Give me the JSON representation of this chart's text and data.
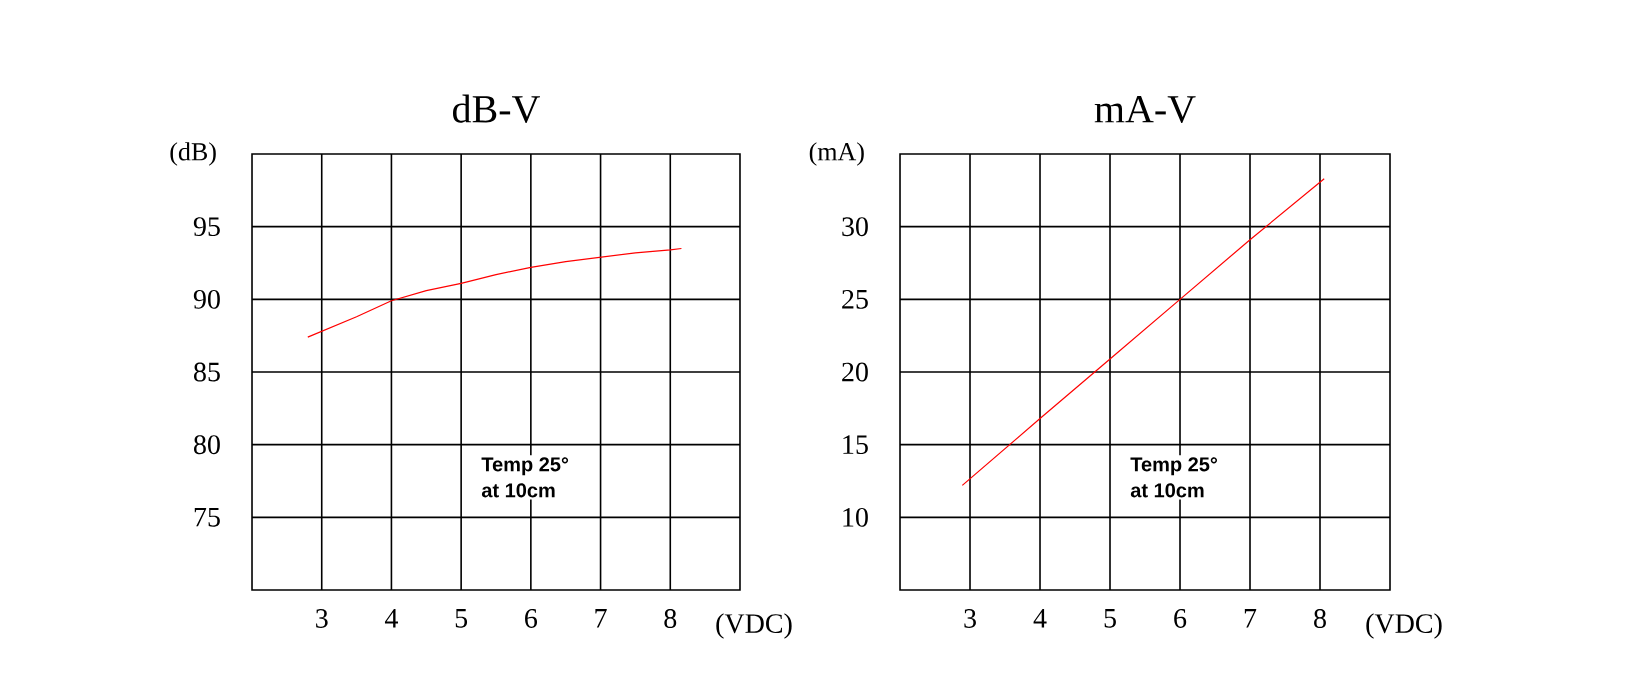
{
  "chart_data": [
    {
      "type": "line",
      "title": "dB-V",
      "xlabel": "(VDC)",
      "ylabel": "(dB)",
      "xlim": [
        2,
        9
      ],
      "xticks": [
        3,
        4,
        5,
        6,
        7,
        8
      ],
      "ylim": [
        70,
        100
      ],
      "yticks": [
        75,
        80,
        85,
        90,
        95
      ],
      "grid": true,
      "annotations": [
        "Temp 25°",
        "at 10cm"
      ],
      "series": [
        {
          "color": "#ff0000",
          "x": [
            2.8,
            3.5,
            4,
            4.5,
            5,
            5.5,
            6,
            6.5,
            7,
            7.5,
            8,
            8.16
          ],
          "values": [
            87.4,
            88.8,
            89.9,
            90.6,
            91.1,
            91.7,
            92.2,
            92.6,
            92.9,
            93.2,
            93.4,
            93.5
          ]
        }
      ]
    },
    {
      "type": "line",
      "title": "mA-V",
      "xlabel": "(VDC)",
      "ylabel": "(mA)",
      "xlim": [
        2,
        9
      ],
      "xticks": [
        3,
        4,
        5,
        6,
        7,
        8
      ],
      "ylim": [
        5,
        35
      ],
      "yticks": [
        10,
        15,
        20,
        25,
        30
      ],
      "grid": true,
      "annotations": [
        "Temp 25°",
        "at 10cm"
      ],
      "series": [
        {
          "color": "#ff0000",
          "x": [
            2.89,
            4,
            5,
            6,
            7,
            8.06
          ],
          "values": [
            12.2,
            16.8,
            20.9,
            25.0,
            29.1,
            33.3
          ]
        }
      ]
    }
  ]
}
